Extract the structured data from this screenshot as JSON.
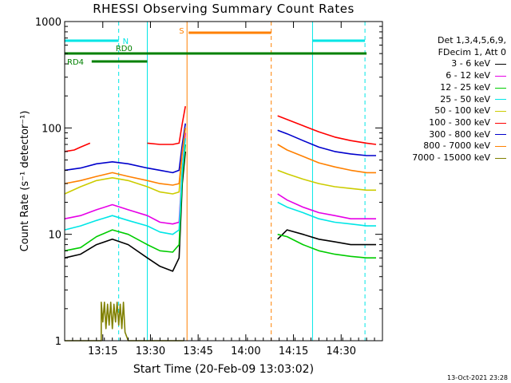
{
  "chart_data": {
    "type": "line",
    "title": "RHESSI Observing Summary Count Rates",
    "xlabel": "Start Time (20-Feb-09 13:03:02)",
    "ylabel": "Count Rate (s⁻¹ detector⁻¹)",
    "yscale": "log",
    "ylim": [
      1,
      1000
    ],
    "xlim_minutes": [
      0,
      100
    ],
    "x_ticks": [
      {
        "label": "13:15",
        "min": 12
      },
      {
        "label": "13:30",
        "min": 27
      },
      {
        "label": "13:45",
        "min": 42
      },
      {
        "label": "14:00",
        "min": 57
      },
      {
        "label": "14:15",
        "min": 72
      },
      {
        "label": "14:30",
        "min": 87
      }
    ],
    "y_ticks": [
      {
        "label": "1",
        "value": 1
      },
      {
        "label": "10",
        "value": 10
      },
      {
        "label": "100",
        "value": 100
      },
      {
        "label": "1000",
        "value": 1000
      }
    ],
    "legend_header": [
      "Det 1,3,4,5,6,9,",
      "FDecim 1, Att 0"
    ],
    "series": [
      {
        "name": "3 - 6 keV",
        "color": "#000000",
        "points": [
          [
            0,
            6
          ],
          [
            5,
            6.5
          ],
          [
            10,
            8
          ],
          [
            15,
            9
          ],
          [
            20,
            8
          ],
          [
            26,
            6
          ],
          [
            30,
            5
          ],
          [
            34,
            4.5
          ],
          [
            36,
            6
          ],
          [
            37,
            30
          ],
          [
            38,
            60
          ],
          [
            null,
            null
          ],
          [
            67,
            9
          ],
          [
            70,
            11
          ],
          [
            75,
            10
          ],
          [
            80,
            9
          ],
          [
            85,
            8.5
          ],
          [
            90,
            8
          ],
          [
            95,
            8
          ],
          [
            98,
            8
          ]
        ]
      },
      {
        "name": "6 - 12 keV",
        "color": "#e600e6",
        "points": [
          [
            0,
            14
          ],
          [
            5,
            15
          ],
          [
            10,
            17
          ],
          [
            15,
            19
          ],
          [
            20,
            17
          ],
          [
            26,
            15
          ],
          [
            30,
            13
          ],
          [
            34,
            12.5
          ],
          [
            36,
            13
          ],
          [
            37,
            40
          ],
          [
            38,
            90
          ],
          [
            null,
            null
          ],
          [
            67,
            24
          ],
          [
            70,
            21
          ],
          [
            75,
            18
          ],
          [
            80,
            16
          ],
          [
            85,
            15
          ],
          [
            90,
            14
          ],
          [
            95,
            14
          ],
          [
            98,
            14
          ]
        ]
      },
      {
        "name": "12 - 25 keV",
        "color": "#00cc00",
        "points": [
          [
            0,
            7
          ],
          [
            5,
            7.5
          ],
          [
            10,
            9.5
          ],
          [
            15,
            11
          ],
          [
            20,
            10
          ],
          [
            26,
            8
          ],
          [
            30,
            7
          ],
          [
            34,
            6.8
          ],
          [
            36,
            8
          ],
          [
            37,
            35
          ],
          [
            38,
            70
          ],
          [
            null,
            null
          ],
          [
            67,
            10
          ],
          [
            70,
            9.5
          ],
          [
            75,
            8
          ],
          [
            80,
            7
          ],
          [
            85,
            6.5
          ],
          [
            90,
            6.2
          ],
          [
            95,
            6
          ],
          [
            98,
            6
          ]
        ]
      },
      {
        "name": "25 - 50 keV",
        "color": "#00e6e6",
        "points": [
          [
            0,
            11
          ],
          [
            5,
            12
          ],
          [
            10,
            13.5
          ],
          [
            15,
            15
          ],
          [
            20,
            13.5
          ],
          [
            26,
            12
          ],
          [
            30,
            10.5
          ],
          [
            34,
            10
          ],
          [
            36,
            11
          ],
          [
            37,
            40
          ],
          [
            38,
            80
          ],
          [
            null,
            null
          ],
          [
            67,
            20
          ],
          [
            70,
            18
          ],
          [
            75,
            16
          ],
          [
            80,
            14
          ],
          [
            85,
            13
          ],
          [
            90,
            12.5
          ],
          [
            95,
            12
          ],
          [
            98,
            12
          ]
        ]
      },
      {
        "name": "50 - 100 keV",
        "color": "#cccc00",
        "points": [
          [
            0,
            24
          ],
          [
            5,
            28
          ],
          [
            10,
            32
          ],
          [
            15,
            34
          ],
          [
            20,
            32
          ],
          [
            26,
            28
          ],
          [
            30,
            25
          ],
          [
            34,
            24
          ],
          [
            36,
            25
          ],
          [
            37,
            60
          ],
          [
            38,
            100
          ],
          [
            null,
            null
          ],
          [
            67,
            40
          ],
          [
            70,
            37
          ],
          [
            75,
            33
          ],
          [
            80,
            30
          ],
          [
            85,
            28
          ],
          [
            90,
            27
          ],
          [
            95,
            26
          ],
          [
            98,
            26
          ]
        ]
      },
      {
        "name": "100 - 300 keV",
        "color": "#ff0000",
        "points": [
          [
            0,
            60
          ],
          [
            3,
            62
          ],
          [
            5,
            66
          ],
          [
            8,
            72
          ],
          [
            null,
            null
          ],
          [
            26,
            72
          ],
          [
            30,
            70
          ],
          [
            34,
            70
          ],
          [
            36,
            72
          ],
          [
            37,
            110
          ],
          [
            38,
            160
          ],
          [
            null,
            null
          ],
          [
            67,
            130
          ],
          [
            70,
            120
          ],
          [
            75,
            105
          ],
          [
            80,
            92
          ],
          [
            85,
            82
          ],
          [
            90,
            76
          ],
          [
            95,
            72
          ],
          [
            98,
            70
          ]
        ]
      },
      {
        "name": "300 - 800 keV",
        "color": "#0000cc",
        "points": [
          [
            0,
            40
          ],
          [
            5,
            42
          ],
          [
            10,
            46
          ],
          [
            15,
            48
          ],
          [
            20,
            46
          ],
          [
            26,
            42
          ],
          [
            30,
            40
          ],
          [
            34,
            38
          ],
          [
            36,
            40
          ],
          [
            37,
            70
          ],
          [
            38,
            110
          ],
          [
            null,
            null
          ],
          [
            67,
            95
          ],
          [
            70,
            88
          ],
          [
            75,
            76
          ],
          [
            80,
            66
          ],
          [
            85,
            60
          ],
          [
            90,
            57
          ],
          [
            95,
            55
          ],
          [
            98,
            55
          ]
        ]
      },
      {
        "name": "800 - 7000 keV",
        "color": "#ff8000",
        "points": [
          [
            0,
            30
          ],
          [
            5,
            32
          ],
          [
            10,
            35
          ],
          [
            15,
            38
          ],
          [
            20,
            35
          ],
          [
            26,
            32
          ],
          [
            30,
            30
          ],
          [
            34,
            29
          ],
          [
            36,
            30
          ],
          [
            37,
            60
          ],
          [
            38,
            100
          ],
          [
            null,
            null
          ],
          [
            67,
            70
          ],
          [
            70,
            62
          ],
          [
            75,
            54
          ],
          [
            80,
            47
          ],
          [
            85,
            43
          ],
          [
            90,
            40
          ],
          [
            95,
            38
          ],
          [
            98,
            38
          ]
        ]
      },
      {
        "name": "7000 - 15000 keV",
        "color": "#808000",
        "points": [
          [
            0,
            1
          ],
          [
            11.5,
            1
          ],
          [
            11.5,
            2.3
          ],
          [
            12,
            1.5
          ],
          [
            12.5,
            2.3
          ],
          [
            13,
            1.3
          ],
          [
            13.5,
            2.2
          ],
          [
            14,
            1.4
          ],
          [
            14.5,
            2.3
          ],
          [
            15,
            1.3
          ],
          [
            15.5,
            2.2
          ],
          [
            16,
            1.5
          ],
          [
            16.5,
            2.3
          ],
          [
            17,
            1.4
          ],
          [
            17.5,
            2.2
          ],
          [
            18,
            1.3
          ],
          [
            18.5,
            2.3
          ],
          [
            19,
            1.2
          ],
          [
            20,
            1
          ],
          [
            37.5,
            1
          ]
        ]
      }
    ],
    "status_bars": [
      {
        "label": "N",
        "color": "#00e6e6",
        "segments": [
          [
            0,
            17
          ]
        ],
        "level": 0.94
      },
      {
        "label": "N",
        "color": "#00e6e6",
        "segments": [
          [
            78,
            94.5
          ]
        ],
        "level": 0.94,
        "hide_label": true
      },
      {
        "label": "RD0",
        "color": "#008000",
        "segments": [
          [
            0,
            26
          ],
          [
            26,
            95
          ]
        ],
        "level": 0.9
      },
      {
        "label": "RD4",
        "color": "#008000",
        "segments": [
          [
            8.5,
            26
          ]
        ],
        "level": 0.875
      },
      {
        "label": "S",
        "color": "#ff8000",
        "segments": [
          [
            39,
            65
          ]
        ],
        "level": 0.965
      }
    ],
    "vertical_markers": [
      {
        "min": 17,
        "color": "#00e6e6",
        "style": "dashed"
      },
      {
        "min": 26,
        "color": "#00e6e6",
        "style": "solid"
      },
      {
        "min": 38.5,
        "color": "#ff8000",
        "style": "solid"
      },
      {
        "min": 65,
        "color": "#ff8000",
        "style": "dashed"
      },
      {
        "min": 78,
        "color": "#00e6e6",
        "style": "solid"
      },
      {
        "min": 94.5,
        "color": "#00e6e6",
        "style": "dashed"
      }
    ],
    "grid": false,
    "legend_position": "right"
  },
  "footer_stamp": "13-Oct-2021 23:28"
}
